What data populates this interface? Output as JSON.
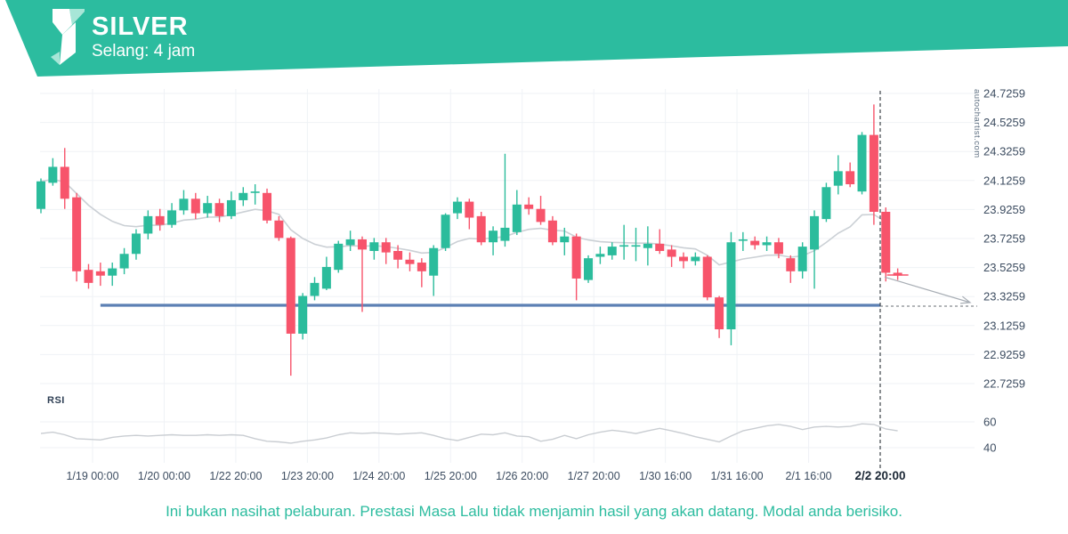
{
  "header": {
    "title": "SILVER",
    "subtitle": "Selang: 4 jam"
  },
  "watermark": "autochartist.com",
  "rsi_panel": {
    "label": "RSI",
    "ticks": [
      "60",
      "40"
    ]
  },
  "disclaimer": "Ini bukan nasihat pelaburan. Prestasi Masa Lalu tidak menjamin hasil yang akan datang. Modal anda berisiko.",
  "colors": {
    "banner": "#2cbc9f",
    "banner_light": "#a7e6d7",
    "candle_up": "#2bbc9c",
    "candle_down": "#f7546b",
    "support_line": "#5c80b4",
    "grid": "#eff2f6",
    "ma_line": "#cbd0d5",
    "rsi_line": "#c9cdd2",
    "axis_text": "#3d4d61",
    "axis_text_bold": "#1b2735",
    "dashed_marker": "#4a5056",
    "trend_arrow": "#a8aeb5"
  },
  "chart_data": {
    "type": "candlestick",
    "title": "SILVER",
    "interval": "4 jam",
    "y_ticks": [
      "24.7259",
      "24.5259",
      "24.3259",
      "24.1259",
      "23.9259",
      "23.7259",
      "23.5259",
      "23.3259",
      "23.1259",
      "22.9259",
      "22.7259"
    ],
    "y_tick_values": [
      24.7259,
      24.5259,
      24.3259,
      24.1259,
      23.9259,
      23.7259,
      23.5259,
      23.3259,
      23.1259,
      22.9259,
      22.7259
    ],
    "x_ticks": [
      "1/19 00:00",
      "1/20 00:00",
      "1/22 20:00",
      "1/23 20:00",
      "1/24 20:00",
      "1/25 20:00",
      "1/26 20:00",
      "1/27 20:00",
      "1/30 16:00",
      "1/31 16:00",
      "2/1 16:00",
      "2/2 20:00"
    ],
    "marker_time": "2/2 20:00",
    "ylim": [
      22.63,
      24.78
    ],
    "rsi_ticks": [
      60,
      40
    ],
    "candles_ohlc": [
      [
        23.93,
        24.14,
        23.9,
        24.12
      ],
      [
        24.11,
        24.28,
        24.09,
        24.22
      ],
      [
        24.22,
        24.35,
        23.93,
        24.0
      ],
      [
        24.01,
        24.04,
        23.43,
        23.5
      ],
      [
        23.51,
        23.55,
        23.38,
        23.42
      ],
      [
        23.5,
        23.56,
        23.4,
        23.47
      ],
      [
        23.47,
        23.56,
        23.4,
        23.52
      ],
      [
        23.52,
        23.66,
        23.48,
        23.62
      ],
      [
        23.62,
        23.79,
        23.58,
        23.76
      ],
      [
        23.76,
        23.92,
        23.72,
        23.88
      ],
      [
        23.88,
        23.93,
        23.78,
        23.82
      ],
      [
        23.82,
        23.97,
        23.8,
        23.92
      ],
      [
        23.92,
        24.06,
        23.89,
        24.0
      ],
      [
        24.0,
        24.04,
        23.86,
        23.9
      ],
      [
        23.9,
        24.02,
        23.87,
        23.97
      ],
      [
        23.97,
        24.0,
        23.84,
        23.88
      ],
      [
        23.88,
        24.05,
        23.86,
        23.99
      ],
      [
        23.99,
        24.08,
        23.95,
        24.04
      ],
      [
        24.04,
        24.1,
        23.96,
        24.05
      ],
      [
        24.04,
        24.07,
        23.83,
        23.85
      ],
      [
        23.85,
        23.88,
        23.71,
        23.73
      ],
      [
        23.73,
        23.74,
        22.78,
        23.07
      ],
      [
        23.07,
        23.35,
        23.03,
        23.33
      ],
      [
        23.33,
        23.46,
        23.3,
        23.42
      ],
      [
        23.38,
        23.6,
        23.37,
        23.53
      ],
      [
        23.51,
        23.71,
        23.49,
        23.69
      ],
      [
        23.68,
        23.78,
        23.64,
        23.72
      ],
      [
        23.72,
        23.74,
        23.22,
        23.65
      ],
      [
        23.64,
        23.73,
        23.58,
        23.7
      ],
      [
        23.7,
        23.73,
        23.55,
        23.63
      ],
      [
        23.64,
        23.68,
        23.52,
        23.58
      ],
      [
        23.58,
        23.63,
        23.5,
        23.55
      ],
      [
        23.56,
        23.59,
        23.39,
        23.5
      ],
      [
        23.47,
        23.68,
        23.33,
        23.66
      ],
      [
        23.66,
        23.9,
        23.64,
        23.89
      ],
      [
        23.9,
        24.01,
        23.86,
        23.98
      ],
      [
        23.98,
        24.0,
        23.79,
        23.87
      ],
      [
        23.88,
        23.91,
        23.68,
        23.7
      ],
      [
        23.7,
        23.81,
        23.61,
        23.78
      ],
      [
        23.71,
        24.31,
        23.67,
        23.8
      ],
      [
        23.77,
        24.06,
        23.75,
        23.96
      ],
      [
        23.96,
        24.01,
        23.89,
        23.93
      ],
      [
        23.93,
        24.02,
        23.82,
        23.84
      ],
      [
        23.85,
        23.88,
        23.68,
        23.7
      ],
      [
        23.7,
        23.8,
        23.61,
        23.74
      ],
      [
        23.74,
        23.76,
        23.3,
        23.45
      ],
      [
        23.44,
        23.61,
        23.42,
        23.59
      ],
      [
        23.6,
        23.67,
        23.55,
        23.62
      ],
      [
        23.61,
        23.7,
        23.58,
        23.67
      ],
      [
        23.67,
        23.82,
        23.58,
        23.68
      ],
      [
        23.67,
        23.8,
        23.57,
        23.68
      ],
      [
        23.66,
        23.81,
        23.54,
        23.69
      ],
      [
        23.69,
        23.79,
        23.62,
        23.64
      ],
      [
        23.65,
        23.68,
        23.53,
        23.6
      ],
      [
        23.6,
        23.63,
        23.52,
        23.57
      ],
      [
        23.57,
        23.63,
        23.54,
        23.6
      ],
      [
        23.6,
        23.61,
        23.3,
        23.32
      ],
      [
        23.32,
        23.33,
        23.04,
        23.1
      ],
      [
        23.1,
        23.77,
        22.99,
        23.7
      ],
      [
        23.71,
        23.77,
        23.64,
        23.72
      ],
      [
        23.71,
        23.74,
        23.65,
        23.68
      ],
      [
        23.68,
        23.74,
        23.64,
        23.7
      ],
      [
        23.7,
        23.73,
        23.59,
        23.62
      ],
      [
        23.59,
        23.61,
        23.42,
        23.5
      ],
      [
        23.5,
        23.7,
        23.45,
        23.67
      ],
      [
        23.65,
        23.92,
        23.38,
        23.88
      ],
      [
        23.86,
        24.11,
        23.84,
        24.08
      ],
      [
        24.09,
        24.3,
        24.03,
        24.19
      ],
      [
        24.19,
        24.25,
        24.08,
        24.1
      ],
      [
        24.05,
        24.46,
        24.03,
        24.44
      ],
      [
        24.44,
        24.65,
        23.82,
        23.91
      ],
      [
        23.91,
        23.94,
        23.43,
        23.49
      ]
    ],
    "last_tick": {
      "ohlc": [
        23.49,
        23.52,
        23.44,
        23.47
      ],
      "price": 23.474
    },
    "support_line": {
      "price": 23.266,
      "start_index": 5
    },
    "trend_arrow": {
      "from_price": 23.46,
      "to_price": 23.285
    },
    "ma": {
      "type": "ema",
      "alpha": 0.13
    },
    "rsi_values": [
      51,
      52,
      50,
      47,
      46.5,
      46,
      48,
      49,
      49.5,
      49,
      49.5,
      50,
      49.5,
      49.5,
      50,
      49.5,
      50,
      49.5,
      47,
      45,
      44.5,
      43.5,
      45,
      46,
      47.5,
      50,
      51.5,
      51,
      51.5,
      51,
      50.5,
      51,
      51.5,
      49.5,
      47,
      45.5,
      48,
      50.5,
      50,
      51.5,
      49,
      48.5,
      45,
      46.5,
      49.5,
      47,
      50,
      52,
      53.5,
      52.5,
      51,
      53,
      55,
      53,
      51,
      48.5,
      46.5,
      44.5,
      49,
      53,
      55,
      57,
      58,
      56.5,
      54,
      56,
      56.5,
      56,
      56.5,
      58.5,
      58,
      54.5,
      53
    ]
  }
}
